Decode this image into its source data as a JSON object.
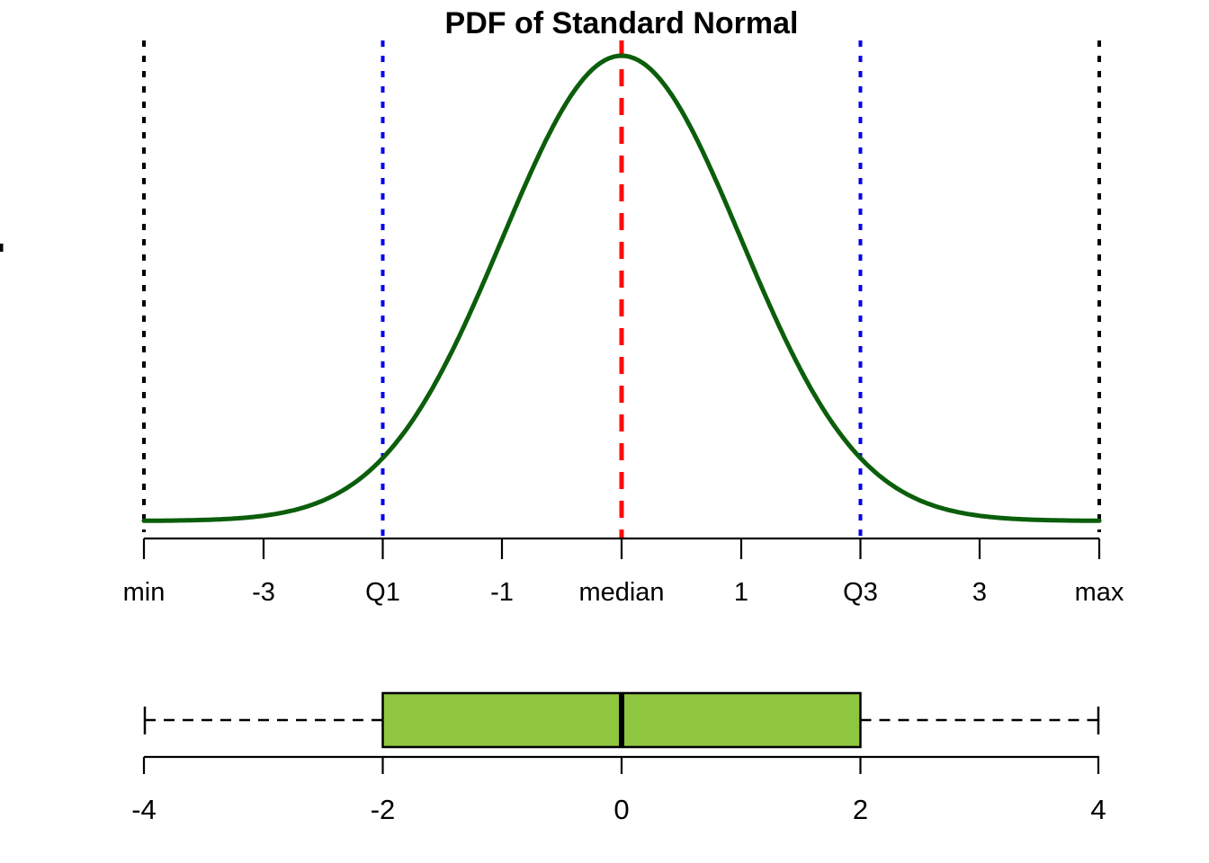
{
  "page": {
    "background": "#FFFFFF"
  },
  "chart_data": [
    {
      "type": "line",
      "title": "PDF of Standard Normal",
      "distribution": {
        "name": "standard normal",
        "mean": 0,
        "sd": 1
      },
      "x_range": [
        -4,
        4
      ],
      "x": [
        -4,
        -3.5,
        -3,
        -2.5,
        -2,
        -1.5,
        -1,
        -0.5,
        0,
        0.5,
        1,
        1.5,
        2,
        2.5,
        3,
        3.5,
        4
      ],
      "y": [
        0.0001,
        0.0009,
        0.0044,
        0.0175,
        0.054,
        0.1295,
        0.242,
        0.3521,
        0.3989,
        0.3521,
        0.242,
        0.1295,
        0.054,
        0.0175,
        0.0044,
        0.0009,
        0.0001
      ],
      "ylim": [
        0,
        0.3989
      ],
      "grid": false,
      "legend": false,
      "curve_color": "#0B5E0B",
      "x_ticks": [
        {
          "pos": -4,
          "label": "min"
        },
        {
          "pos": -3,
          "label": "-3"
        },
        {
          "pos": -2,
          "label": "Q1"
        },
        {
          "pos": -1,
          "label": "-1"
        },
        {
          "pos": 0,
          "label": "median"
        },
        {
          "pos": 1,
          "label": "1"
        },
        {
          "pos": 2,
          "label": "Q3"
        },
        {
          "pos": 3,
          "label": "3"
        },
        {
          "pos": 4,
          "label": "max"
        }
      ],
      "vlines": [
        {
          "at": -4,
          "label": "min",
          "style": "dotted",
          "color": "#000000"
        },
        {
          "at": -2,
          "label": "Q1",
          "style": "dotted",
          "color": "#0000EE"
        },
        {
          "at": 0,
          "label": "median",
          "style": "dashed",
          "color": "#FC0B07"
        },
        {
          "at": 2,
          "label": "Q3",
          "style": "dotted",
          "color": "#0000EE"
        },
        {
          "at": 4,
          "label": "max",
          "style": "dotted",
          "color": "#000000"
        }
      ]
    },
    {
      "type": "boxplot",
      "orientation": "horizontal",
      "stats": {
        "min": -4,
        "q1": -2,
        "median": 0,
        "q3": 2,
        "max": 4
      },
      "xlim": [
        -4,
        4
      ],
      "grid": false,
      "whisker_style": "dashed",
      "box_fill": "#8FC640",
      "box_border": "#000000",
      "median_color": "#000000",
      "x_ticks": [
        {
          "pos": -4,
          "label": "-4"
        },
        {
          "pos": -2,
          "label": "-2"
        },
        {
          "pos": 0,
          "label": "0"
        },
        {
          "pos": 2,
          "label": "2"
        },
        {
          "pos": 4,
          "label": "4"
        }
      ]
    }
  ]
}
